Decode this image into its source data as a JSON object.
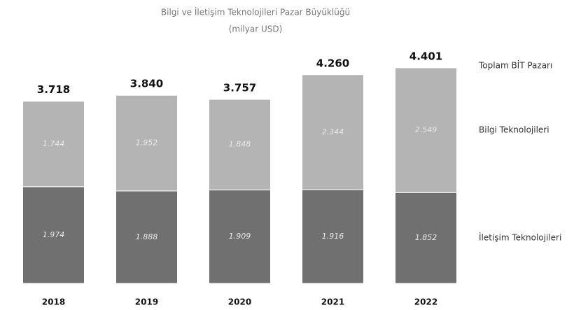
{
  "chart_data": {
    "type": "stacked_bar",
    "title": "Bilgi ve İletişim Teknolojileri Pazar Büyüklüğü",
    "subtitle": "(milyar USD)",
    "categories": [
      "2018",
      "2019",
      "2020",
      "2021",
      "2022"
    ],
    "series": [
      {
        "name": "İletişim Teknolojileri",
        "color": "#707070",
        "values": [
          1974,
          1888,
          1909,
          1916,
          1852
        ],
        "value_labels": [
          "1.974",
          "1.888",
          "1.909",
          "1.916",
          "1.852"
        ]
      },
      {
        "name": "Bilgi Teknolojileri",
        "color": "#b4b4b4",
        "values": [
          1744,
          1952,
          1848,
          2344,
          2549
        ],
        "value_labels": [
          "1.744",
          "1.952",
          "1.848",
          "2.344",
          "2.549"
        ]
      }
    ],
    "totals": {
      "name": "Toplam BİT Pazarı",
      "values": [
        3718,
        3840,
        3757,
        4260,
        4401
      ],
      "value_labels": [
        "3.718",
        "3.840",
        "3.757",
        "4.260",
        "4.401"
      ]
    },
    "ylim": [
      0,
      4700
    ]
  }
}
